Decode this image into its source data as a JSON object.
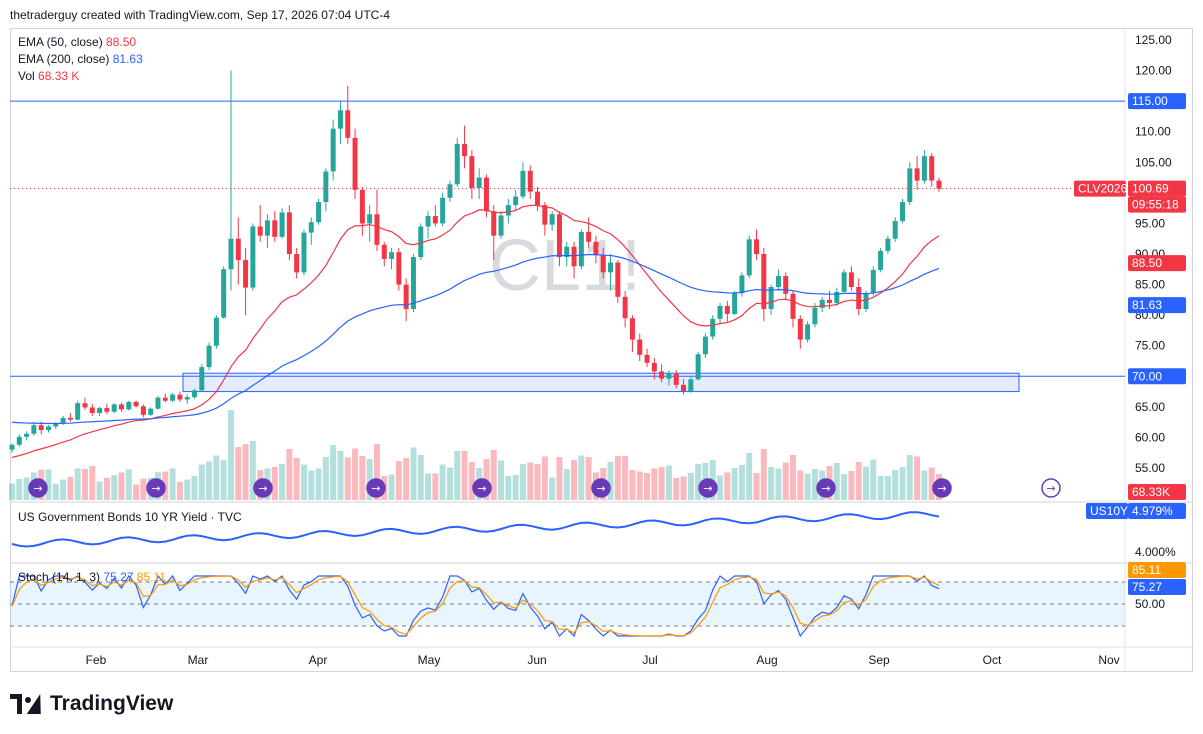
{
  "header": {
    "text": "thetraderguy created with TradingView.com, Sep 17, 2026 07:04 UTC-4"
  },
  "legend": {
    "ema50": {
      "label": "EMA (50, close)",
      "value": "88.50"
    },
    "ema200": {
      "label": "EMA (200, close)",
      "value": "81.63"
    },
    "vol": {
      "label": "Vol",
      "value": "68.33 K"
    }
  },
  "watermark": "CL1!",
  "price_axis": {
    "ticks": [
      "125.00",
      "120.00",
      "115.00",
      "110.00",
      "105.00",
      "100.00",
      "95.00",
      "90.00",
      "85.00",
      "80.00",
      "75.00",
      "70.00",
      "65.00",
      "60.00",
      "55.00"
    ],
    "tags": {
      "level_115": "115.00",
      "symbol": "CLV2026",
      "last": "100.69",
      "countdown": "09:55:18",
      "ema50": "88.50",
      "ema200": "81.63",
      "level_70": "70.00",
      "volume": "68.33K"
    }
  },
  "bonds_pane": {
    "label": "US Government Bonds 10 YR Yield · TVC",
    "symbol": "US10Y",
    "value": "4.979%",
    "tick": "4.000%"
  },
  "stoch_pane": {
    "label": "Stoch (14, 1, 3)",
    "k": "75.27",
    "d": "85.11",
    "tick": "50.00"
  },
  "time_axis": [
    "Feb",
    "Mar",
    "Apr",
    "May",
    "Jun",
    "Jul",
    "Aug",
    "Sep",
    "Oct",
    "Nov"
  ],
  "logo_text": "TradingView",
  "colors": {
    "up": "#26a69a",
    "down": "#f23645",
    "ema50": "#f23645",
    "ema200": "#2962ff",
    "zone": "#2962ff"
  },
  "chart_data": {
    "type": "candlestick",
    "symbol": "CL1!",
    "ylim": [
      52,
      126
    ],
    "horizontal_levels": [
      115,
      70
    ],
    "support_zone": [
      67.5,
      70.5
    ],
    "ohlc_approx": [
      [
        58,
        59,
        57.5,
        58.8
      ],
      [
        58.8,
        60.5,
        58.5,
        60.1
      ],
      [
        60.1,
        61,
        59.5,
        60.6
      ],
      [
        60.6,
        62.5,
        60.3,
        62
      ],
      [
        62,
        62.6,
        60.5,
        61.2
      ],
      [
        61.2,
        62,
        60.8,
        61.8
      ],
      [
        61.8,
        62.5,
        61.4,
        62.3
      ],
      [
        62.3,
        63.5,
        62,
        63.2
      ],
      [
        63.2,
        64,
        62.6,
        62.9
      ],
      [
        62.9,
        66,
        62.8,
        65.6
      ],
      [
        65.6,
        66.5,
        64.5,
        64.9
      ],
      [
        64.9,
        65.5,
        63.5,
        64
      ],
      [
        64,
        65,
        63.5,
        64.8
      ],
      [
        64.8,
        65.5,
        63.8,
        64.2
      ],
      [
        64.2,
        65.6,
        64,
        65.4
      ],
      [
        65.4,
        65.7,
        64.2,
        64.6
      ],
      [
        64.6,
        66,
        64.4,
        65.8
      ],
      [
        65.8,
        66,
        64.9,
        65.1
      ],
      [
        65.1,
        65.4,
        63.3,
        63.7
      ],
      [
        63.7,
        64.9,
        63.5,
        64.7
      ],
      [
        64.7,
        66.8,
        64.5,
        66.5
      ],
      [
        66.5,
        67.2,
        65.7,
        66
      ],
      [
        66,
        67.3,
        65.8,
        67
      ],
      [
        67,
        67.5,
        65.8,
        66.2
      ],
      [
        66.2,
        67,
        65.5,
        66.6
      ],
      [
        66.6,
        68,
        66.3,
        67.7
      ],
      [
        67.7,
        72,
        67.5,
        71.5
      ],
      [
        71.5,
        75.5,
        71,
        75
      ],
      [
        75,
        80,
        74.5,
        79.6
      ],
      [
        79.6,
        88,
        79.4,
        87.5
      ],
      [
        87.5,
        120,
        84,
        92.5
      ],
      [
        92.5,
        96,
        85,
        89
      ],
      [
        89,
        91,
        80,
        84.5
      ],
      [
        84.5,
        95,
        84,
        94.5
      ],
      [
        94.5,
        98,
        92,
        93
      ],
      [
        93,
        96.5,
        91,
        95.5
      ],
      [
        95.5,
        97,
        92,
        92.8
      ],
      [
        92.8,
        97.5,
        92.5,
        96.8
      ],
      [
        96.8,
        98,
        89,
        90
      ],
      [
        90,
        91,
        86,
        87
      ],
      [
        87,
        94,
        86.5,
        93.5
      ],
      [
        93.5,
        96,
        91.5,
        95.2
      ],
      [
        95.2,
        99,
        94.8,
        98.5
      ],
      [
        98.5,
        104,
        97,
        103.5
      ],
      [
        103.5,
        112,
        102,
        110.5
      ],
      [
        110.5,
        115,
        108,
        113.5
      ],
      [
        113.5,
        117.5,
        108,
        109
      ],
      [
        109,
        110.5,
        99,
        100.5
      ],
      [
        100.5,
        101,
        93,
        95
      ],
      [
        95,
        98,
        92,
        96.5
      ],
      [
        96.5,
        100.5,
        90.5,
        91.5
      ],
      [
        91.5,
        92,
        88,
        89.2
      ],
      [
        89.2,
        91,
        87.5,
        90.3
      ],
      [
        90.3,
        91,
        84,
        85
      ],
      [
        85,
        86,
        79,
        81
      ],
      [
        81,
        90,
        80.5,
        89.5
      ],
      [
        89.5,
        95,
        89,
        94.5
      ],
      [
        94.5,
        97,
        92.5,
        96.2
      ],
      [
        96.2,
        98,
        94.5,
        95
      ],
      [
        95,
        100,
        94.5,
        99.2
      ],
      [
        99.2,
        102,
        98.5,
        101.4
      ],
      [
        101.4,
        109,
        101,
        108
      ],
      [
        108,
        111,
        104,
        106
      ],
      [
        106,
        107,
        99,
        100.8
      ],
      [
        100.8,
        104,
        99,
        102.5
      ],
      [
        102.5,
        103,
        96,
        97
      ],
      [
        97,
        98,
        89,
        93
      ],
      [
        93,
        97,
        92.5,
        96.3
      ],
      [
        96.3,
        99,
        95,
        98
      ],
      [
        98,
        100.5,
        97.2,
        99.4
      ],
      [
        99.4,
        105,
        99,
        103.6
      ],
      [
        103.6,
        104.5,
        99,
        100.2
      ],
      [
        100.2,
        101,
        97,
        98
      ],
      [
        98,
        98.5,
        93,
        94.8
      ],
      [
        94.8,
        97,
        93.8,
        96.5
      ],
      [
        96.5,
        97,
        88,
        89.5
      ],
      [
        89.5,
        92,
        88,
        91.2
      ],
      [
        91.2,
        92,
        86,
        88
      ],
      [
        88,
        94,
        87.5,
        93.6
      ],
      [
        93.6,
        96,
        91,
        92
      ],
      [
        92,
        93,
        88.5,
        89.8
      ],
      [
        89.8,
        91,
        86,
        87
      ],
      [
        87,
        90,
        84,
        88.6
      ],
      [
        88.6,
        89,
        82,
        83
      ],
      [
        83,
        84,
        78,
        79.5
      ],
      [
        79.5,
        80,
        74,
        76
      ],
      [
        76,
        77,
        72.5,
        73.5
      ],
      [
        73.5,
        74.5,
        71.5,
        72.2
      ],
      [
        72.2,
        73,
        69.5,
        70.8
      ],
      [
        70.8,
        72,
        69,
        69.6
      ],
      [
        69.6,
        71,
        68.5,
        70.4
      ],
      [
        70.4,
        71,
        68,
        68.6
      ],
      [
        68.6,
        69.5,
        67,
        67.6
      ],
      [
        67.6,
        70,
        67.3,
        69.5
      ],
      [
        69.5,
        74,
        69.3,
        73.6
      ],
      [
        73.6,
        77,
        73,
        76.5
      ],
      [
        76.5,
        80,
        76,
        79.4
      ],
      [
        79.4,
        82,
        78.5,
        81.5
      ],
      [
        81.5,
        82.3,
        78.8,
        80.2
      ],
      [
        80.2,
        84,
        80,
        83.6
      ],
      [
        83.6,
        87,
        83,
        86.5
      ],
      [
        86.5,
        93,
        86,
        92.4
      ],
      [
        92.4,
        94,
        89,
        90
      ],
      [
        90,
        91,
        79,
        81
      ],
      [
        81,
        85,
        80,
        84.6
      ],
      [
        84.6,
        87.5,
        84,
        86.4
      ],
      [
        86.4,
        87,
        82.5,
        83.5
      ],
      [
        83.5,
        84,
        78,
        79.4
      ],
      [
        79.4,
        80,
        74.5,
        76
      ],
      [
        76,
        79,
        75.5,
        78.5
      ],
      [
        78.5,
        82,
        78,
        81.2
      ],
      [
        81.2,
        83,
        80.5,
        82.5
      ],
      [
        82.5,
        84,
        81,
        82
      ],
      [
        82,
        84.5,
        81.5,
        83.8
      ],
      [
        83.8,
        87.5,
        83.5,
        87
      ],
      [
        87,
        88,
        84,
        84.6
      ],
      [
        84.6,
        86,
        80,
        81
      ],
      [
        81,
        84,
        80.5,
        83.6
      ],
      [
        83.6,
        88,
        83.2,
        87.4
      ],
      [
        87.4,
        91,
        87,
        90.5
      ],
      [
        90.5,
        93,
        90,
        92.5
      ],
      [
        92.5,
        96,
        92,
        95.4
      ],
      [
        95.4,
        99,
        95,
        98.5
      ],
      [
        98.5,
        105,
        98,
        104
      ],
      [
        104,
        106,
        100.5,
        102
      ],
      [
        102,
        107,
        101.5,
        106
      ],
      [
        106,
        106.5,
        101,
        102
      ],
      [
        102,
        102.5,
        100.2,
        100.69
      ]
    ]
  }
}
